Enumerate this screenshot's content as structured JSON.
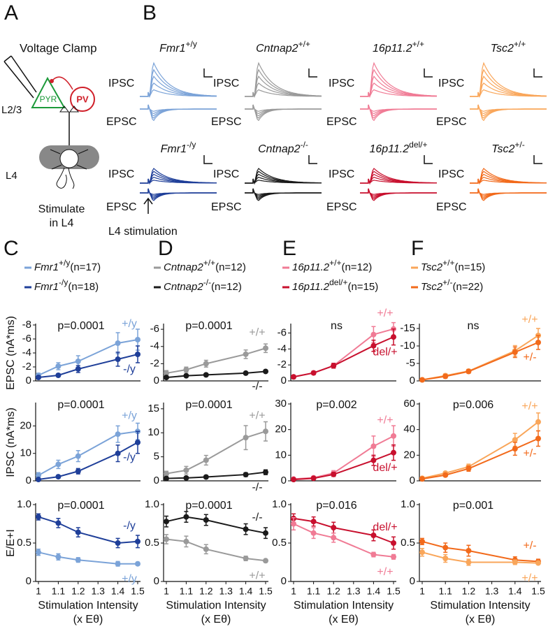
{
  "panel_a": {
    "label": "A",
    "title": "Voltage Clamp",
    "pyr": "PYR",
    "pv": "PV",
    "upper_layer": "L2/3",
    "lower_layer": "L4",
    "stimulate": [
      "Stimulate",
      "in L4"
    ]
  },
  "panel_b": {
    "label": "B",
    "ipsc": "IPSC",
    "epsc": "EPSC",
    "stimulation": "L4 stimulation",
    "traces": [
      {
        "gene": "Fmr1",
        "genotype": "+/y",
        "color": "#7ba3d8"
      },
      {
        "gene": "Cntnap2",
        "genotype": "+/+",
        "color": "#9a9a9a"
      },
      {
        "gene": "16p11.2",
        "genotype": "+/+",
        "color": "#f07b95"
      },
      {
        "gene": "Tsc2",
        "genotype": "+/+",
        "color": "#f9a65a"
      },
      {
        "gene": "Fmr1",
        "genotype": "-/y",
        "color": "#1f3f99"
      },
      {
        "gene": "Cntnap2",
        "genotype": "-/-",
        "color": "#1a1a1a"
      },
      {
        "gene": "16p11.2",
        "genotype": "del/+",
        "color": "#c8102e"
      },
      {
        "gene": "Tsc2",
        "genotype": "+/-",
        "color": "#f26a1b"
      }
    ]
  },
  "chart_data": [
    {
      "type": "line",
      "panel": "C",
      "ylabel": "EPSC (nA*ms)",
      "p": "p=0.0001",
      "x": [
        1,
        1.1,
        1.2,
        1.4,
        1.5
      ],
      "xlim": [
        1,
        1.5
      ],
      "ylim": [
        0,
        -8
      ],
      "yticks": [
        -8,
        -6,
        -4,
        -2,
        0
      ],
      "series": [
        {
          "name": "Fmr1",
          "genotype": "+/y",
          "n": "(n=17)",
          "label": "+/y",
          "color": "#7ba3d8",
          "values": [
            -0.8,
            -2.1,
            -2.8,
            -5.4,
            -5.9
          ],
          "errors": [
            0.3,
            0.5,
            0.8,
            1.5,
            1.5
          ]
        },
        {
          "name": "Fmr1",
          "genotype": "-/y",
          "n": "(n=18)",
          "label": "-/y",
          "color": "#1f3f99",
          "values": [
            -0.5,
            -0.8,
            -1.7,
            -3.1,
            -3.8
          ],
          "errors": [
            0.2,
            0.2,
            0.5,
            1.0,
            1.2
          ]
        }
      ]
    },
    {
      "type": "line",
      "ylabel": "IPSC (nA*ms)",
      "p": "p=0.0001",
      "x": [
        1,
        1.1,
        1.2,
        1.4,
        1.5
      ],
      "xlim": [
        1,
        1.5
      ],
      "ylim": [
        0,
        28
      ],
      "yticks": [
        0,
        10,
        20
      ],
      "series": [
        {
          "label": "+/y",
          "color": "#7ba3d8",
          "values": [
            2,
            6,
            9,
            17,
            18
          ],
          "errors": [
            1,
            1.5,
            2,
            3,
            3
          ]
        },
        {
          "label": "-/y",
          "color": "#1f3f99",
          "values": [
            0.5,
            1.5,
            3.5,
            10,
            14
          ],
          "errors": [
            0.3,
            0.5,
            1,
            3,
            4
          ]
        }
      ]
    },
    {
      "type": "line",
      "ylabel": "E/E+I",
      "p": "p=0.0001",
      "x": [
        1,
        1.1,
        1.2,
        1.4,
        1.5
      ],
      "xlim": [
        1,
        1.5
      ],
      "ylim": [
        0,
        1
      ],
      "yticks": [
        0,
        0.5,
        {
          "value": 1,
          "label": "1.0"
        }
      ],
      "xticks": [
        1,
        1.1,
        1.2,
        1.3,
        1.4,
        1.5
      ],
      "xlabel": [
        "Stimulation Intensity",
        "(x Eθ)"
      ],
      "series": [
        {
          "label": "-/y",
          "color": "#1f3f99",
          "values": [
            0.84,
            0.76,
            0.64,
            0.5,
            0.52
          ],
          "errors": [
            0.04,
            0.06,
            0.06,
            0.06,
            0.08
          ]
        },
        {
          "label": "+/y",
          "color": "#7ba3d8",
          "values": [
            0.38,
            0.32,
            0.28,
            0.23,
            0.23
          ],
          "errors": [
            0.04,
            0.04,
            0.03,
            0.03,
            0.02
          ]
        }
      ]
    },
    {
      "type": "line",
      "panel": "D",
      "p": "p=0.0001",
      "x": [
        1,
        1.1,
        1.2,
        1.4,
        1.5
      ],
      "xlim": [
        1,
        1.5
      ],
      "ylim": [
        0,
        -6.5
      ],
      "yticks": [
        -6,
        -4,
        -2,
        0
      ],
      "series": [
        {
          "name": "Cntnap2",
          "genotype": "+/+",
          "n": "(n=12)",
          "label": "+/+",
          "color": "#9a9a9a",
          "values": [
            -0.9,
            -1.3,
            -2.0,
            -3.1,
            -3.8
          ],
          "errors": [
            0.3,
            0.3,
            0.4,
            0.5,
            0.5
          ]
        },
        {
          "name": "Cntnap2",
          "genotype": "-/-",
          "n": "(n=12)",
          "label": "-/-",
          "color": "#1a1a1a",
          "values": [
            -0.4,
            -0.6,
            -0.7,
            -0.9,
            -1.1
          ],
          "errors": [
            0.1,
            0.1,
            0.1,
            0.1,
            0.1
          ]
        }
      ]
    },
    {
      "type": "line",
      "p": "p=0.0001",
      "x": [
        1,
        1.1,
        1.2,
        1.4,
        1.5
      ],
      "xlim": [
        1,
        1.5
      ],
      "ylim": [
        0,
        16
      ],
      "yticks": [
        0,
        5,
        10,
        15
      ],
      "series": [
        {
          "label": "+/+",
          "color": "#9a9a9a",
          "values": [
            1.5,
            2.2,
            4.3,
            9,
            10.3
          ],
          "errors": [
            0.5,
            0.8,
            1,
            2.5,
            2
          ]
        },
        {
          "label": "-/-",
          "color": "#1a1a1a",
          "values": [
            0.5,
            0.6,
            0.8,
            1.3,
            1.8
          ],
          "errors": [
            0.2,
            0.2,
            0.3,
            0.4,
            0.5
          ]
        }
      ]
    },
    {
      "type": "line",
      "p": "p=0.0001",
      "x": [
        1,
        1.1,
        1.2,
        1.4,
        1.5
      ],
      "xlim": [
        1,
        1.5
      ],
      "ylim": [
        0,
        1
      ],
      "yticks": [
        0,
        0.5,
        {
          "value": 1,
          "label": "1.0"
        }
      ],
      "xticks": [
        1,
        1.1,
        1.2,
        1.3,
        1.4,
        1.5
      ],
      "xlabel": [
        "Stimulation Intensity",
        "(x Eθ)"
      ],
      "series": [
        {
          "label": "-/-",
          "color": "#1a1a1a",
          "values": [
            0.78,
            0.84,
            0.8,
            0.68,
            0.63
          ],
          "errors": [
            0.07,
            0.07,
            0.07,
            0.07,
            0.07
          ]
        },
        {
          "label": "+/+",
          "color": "#9a9a9a",
          "values": [
            0.55,
            0.52,
            0.42,
            0.3,
            0.27
          ],
          "errors": [
            0.06,
            0.07,
            0.06,
            0.03,
            0.02
          ]
        }
      ]
    },
    {
      "type": "line",
      "panel": "E",
      "p": "ns",
      "x": [
        1,
        1.1,
        1.2,
        1.4,
        1.5
      ],
      "xlim": [
        1,
        1.5
      ],
      "ylim": [
        0,
        -7
      ],
      "yticks": [
        -6,
        -4,
        -2,
        0
      ],
      "series": [
        {
          "name": "16p11.2",
          "genotype": "+/+",
          "n": "(n=12)",
          "label": "+/+",
          "color": "#f07b95",
          "values": [
            -0.5,
            -1.0,
            -1.9,
            -5.8,
            -6.5
          ],
          "errors": [
            0.2,
            0.2,
            0.3,
            1,
            0.8
          ]
        },
        {
          "name": "16p11.2",
          "genotype": "del/+",
          "n": "(n=15)",
          "label": "del/+",
          "color": "#c8102e",
          "values": [
            -0.5,
            -1.0,
            -1.9,
            -4.4,
            -5.5
          ],
          "errors": [
            0.2,
            0.2,
            0.3,
            0.7,
            1
          ]
        }
      ]
    },
    {
      "type": "line",
      "p": "p=0.002",
      "x": [
        1,
        1.1,
        1.2,
        1.4,
        1.5
      ],
      "xlim": [
        1,
        1.5
      ],
      "ylim": [
        0,
        30
      ],
      "yticks": [
        0,
        10,
        20,
        30
      ],
      "series": [
        {
          "label": "+/+",
          "color": "#f07b95",
          "values": [
            0.7,
            1.2,
            3,
            13.5,
            17.5
          ],
          "errors": [
            0.3,
            0.5,
            1,
            4,
            4
          ]
        },
        {
          "label": "del/+",
          "color": "#c8102e",
          "values": [
            0.5,
            1,
            2.5,
            8,
            11
          ],
          "errors": [
            0.3,
            0.4,
            0.8,
            2,
            3
          ]
        }
      ]
    },
    {
      "type": "line",
      "p": "p=0.016",
      "x": [
        1,
        1.1,
        1.2,
        1.4,
        1.5
      ],
      "xlim": [
        1,
        1.5
      ],
      "ylim": [
        0,
        1
      ],
      "yticks": [
        0,
        0.5,
        {
          "value": 1,
          "label": "1.0"
        }
      ],
      "xticks": [
        1,
        1.1,
        1.2,
        1.3,
        1.4,
        1.5
      ],
      "xlabel": [
        "Stimulation Intensity",
        "(x Eθ)"
      ],
      "series": [
        {
          "label": "del/+",
          "color": "#c8102e",
          "values": [
            0.82,
            0.78,
            0.7,
            0.6,
            0.5
          ],
          "errors": [
            0.06,
            0.06,
            0.07,
            0.07,
            0.08
          ]
        },
        {
          "label": "+/+",
          "color": "#f07b95",
          "values": [
            0.75,
            0.63,
            0.57,
            0.35,
            0.32
          ],
          "errors": [
            0.08,
            0.07,
            0.06,
            0.03,
            0.03
          ]
        }
      ]
    },
    {
      "type": "line",
      "panel": "F",
      "p": "ns",
      "x": [
        1,
        1.1,
        1.2,
        1.4,
        1.5
      ],
      "xlim": [
        1,
        1.5
      ],
      "ylim": [
        0,
        -16
      ],
      "yticks": [
        -15,
        -10,
        -5,
        0
      ],
      "series": [
        {
          "name": "Tsc2",
          "genotype": "+/+",
          "n": "(n=15)",
          "label": "+/+",
          "color": "#f9a65a",
          "values": [
            -0.3,
            -1.5,
            -2.8,
            -8.6,
            -13
          ],
          "errors": [
            0.3,
            0.5,
            0.5,
            1.5,
            2
          ]
        },
        {
          "name": "Tsc2",
          "genotype": "+/-",
          "n": "(n=22)",
          "label": "+/-",
          "color": "#f26a1b",
          "values": [
            -0.3,
            -1.3,
            -2.7,
            -8.2,
            -11
          ],
          "errors": [
            0.3,
            0.5,
            0.5,
            1.5,
            2
          ]
        }
      ]
    },
    {
      "type": "line",
      "p": "p=0.006",
      "x": [
        1,
        1.1,
        1.2,
        1.4,
        1.5
      ],
      "xlim": [
        1,
        1.5
      ],
      "ylim": [
        0,
        60
      ],
      "yticks": [
        0,
        20,
        40,
        60
      ],
      "series": [
        {
          "label": "+/+",
          "color": "#f9a65a",
          "values": [
            2,
            6,
            11,
            32,
            46
          ],
          "errors": [
            1,
            1,
            2,
            5,
            7
          ]
        },
        {
          "label": "+/-",
          "color": "#f26a1b",
          "values": [
            1.5,
            4.5,
            9.5,
            25,
            33
          ],
          "errors": [
            1,
            1,
            2,
            5,
            6
          ]
        }
      ]
    },
    {
      "type": "line",
      "p": "p=0.001",
      "x": [
        1,
        1.1,
        1.2,
        1.4,
        1.5
      ],
      "xlim": [
        1,
        1.5
      ],
      "ylim": [
        0,
        1
      ],
      "yticks": [
        0,
        0.5,
        {
          "value": 1,
          "label": "1.0"
        }
      ],
      "xticks": [
        1,
        1.1,
        1.2,
        1.3,
        1.4,
        1.5
      ],
      "xlabel": [
        "Stimulation Intensity",
        "(x Eθ)"
      ],
      "series": [
        {
          "label": "+/-",
          "color": "#f26a1b",
          "values": [
            0.52,
            0.44,
            0.4,
            0.28,
            0.26
          ],
          "errors": [
            0.04,
            0.06,
            0.07,
            0.04,
            0.03
          ]
        },
        {
          "label": "+/+",
          "color": "#f9a65a",
          "values": [
            0.38,
            0.3,
            0.25,
            0.25,
            0.24
          ],
          "errors": [
            0.05,
            0.05,
            0.04,
            0.03,
            0.02
          ]
        }
      ]
    }
  ]
}
